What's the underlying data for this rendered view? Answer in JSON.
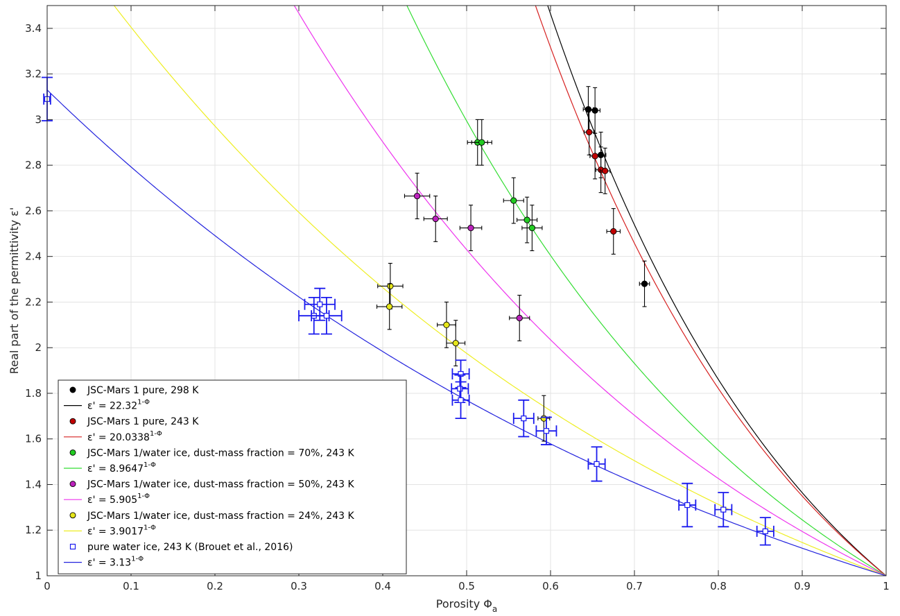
{
  "chart_data": {
    "type": "scatter",
    "xlabel": "Porosity Φ",
    "xlabel_sub": "a",
    "ylabel": "Real part of the permittivity ε'",
    "xlim": [
      0,
      1
    ],
    "ylim": [
      1,
      3.5
    ],
    "x_ticks": [
      {
        "value": 0,
        "label": "0"
      },
      {
        "value": 0.1,
        "label": "0.1"
      },
      {
        "value": 0.2,
        "label": "0.2"
      },
      {
        "value": 0.3,
        "label": "0.3"
      },
      {
        "value": 0.4,
        "label": "0.4"
      },
      {
        "value": 0.5,
        "label": "0.5"
      },
      {
        "value": 0.6,
        "label": "0.6"
      },
      {
        "value": 0.7,
        "label": "0.7"
      },
      {
        "value": 0.8,
        "label": "0.8"
      },
      {
        "value": 0.9,
        "label": "0.9"
      },
      {
        "value": 1,
        "label": "1"
      }
    ],
    "y_ticks": [
      {
        "value": 1,
        "label": "1"
      },
      {
        "value": 1.2,
        "label": "1.2"
      },
      {
        "value": 1.4,
        "label": "1.4"
      },
      {
        "value": 1.6,
        "label": "1.6"
      },
      {
        "value": 1.8,
        "label": "1.8"
      },
      {
        "value": 2,
        "label": "2"
      },
      {
        "value": 2.2,
        "label": "2.2"
      },
      {
        "value": 2.4,
        "label": "2.4"
      },
      {
        "value": 2.6,
        "label": "2.6"
      },
      {
        "value": 2.8,
        "label": "2.8"
      },
      {
        "value": 3,
        "label": "3"
      },
      {
        "value": 3.2,
        "label": "3.2"
      },
      {
        "value": 3.4,
        "label": "3.4"
      }
    ],
    "grid": true,
    "legend_position": "bottom-left",
    "legend": [
      {
        "label": "JSC-Mars 1 pure, 298 K",
        "kind": "marker",
        "color": "#000000",
        "marker": "circle"
      },
      {
        "label": "ε' = 22.32",
        "sup": "1-Φ",
        "kind": "line",
        "color": "#000000"
      },
      {
        "label": "JSC-Mars 1 pure, 243 K",
        "kind": "marker",
        "color": "#c00000",
        "marker": "circle"
      },
      {
        "label": "ε' = 20.0338",
        "sup": "1-Φ",
        "kind": "line",
        "color": "#d62020"
      },
      {
        "label": "JSC-Mars 1/water ice, dust-mass fraction = 70%, 243 K",
        "kind": "marker",
        "color": "#22cc22",
        "marker": "circle"
      },
      {
        "label": "ε' = 8.9647",
        "sup": "1-Φ",
        "kind": "line",
        "color": "#33dd33"
      },
      {
        "label": "JSC-Mars 1/water ice, dust-mass fraction = 50%, 243 K",
        "kind": "marker",
        "color": "#bb22bb",
        "marker": "circle"
      },
      {
        "label": "ε' = 5.905",
        "sup": "1-Φ",
        "kind": "line",
        "color": "#ee33ee"
      },
      {
        "label": "JSC-Mars 1/water ice, dust-mass fraction = 24%, 243 K",
        "kind": "marker",
        "color": "#e6e61a",
        "marker": "circle"
      },
      {
        "label": "ε' = 3.9017",
        "sup": "1-Φ",
        "kind": "line",
        "color": "#eeee22"
      },
      {
        "label": "pure water ice, 243 K (Brouet et al., 2016)",
        "kind": "marker",
        "color": "#1a1aee",
        "marker": "square"
      },
      {
        "label": "ε' = 3.13",
        "sup": "1-Φ",
        "kind": "line",
        "color": "#2222dd"
      }
    ],
    "curves": [
      {
        "name": "ε' = 22.32^(1-Φ)",
        "base": 22.32,
        "color": "#000000"
      },
      {
        "name": "ε' = 20.0338^(1-Φ)",
        "base": 20.0338,
        "color": "#d62020"
      },
      {
        "name": "ε' = 8.9647^(1-Φ)",
        "base": 8.9647,
        "color": "#33dd33"
      },
      {
        "name": "ε' = 5.905^(1-Φ)",
        "base": 5.905,
        "color": "#ee33ee"
      },
      {
        "name": "ε' = 3.9017^(1-Φ)",
        "base": 3.9017,
        "color": "#eeee22"
      },
      {
        "name": "ε' = 3.13^(1-Φ)",
        "base": 3.13,
        "color": "#2222dd"
      }
    ],
    "series": [
      {
        "name": "JSC-Mars 1 pure, 298 K",
        "marker": "circle",
        "color": "#000000",
        "points": [
          {
            "x": 0.645,
            "y": 3.045,
            "xerr": 0.006,
            "yerr": 0.1
          },
          {
            "x": 0.653,
            "y": 3.04,
            "xerr": 0.006,
            "yerr": 0.1
          },
          {
            "x": 0.66,
            "y": 2.845,
            "xerr": 0.006,
            "yerr": 0.1
          },
          {
            "x": 0.712,
            "y": 2.28,
            "xerr": 0.006,
            "yerr": 0.1
          }
        ]
      },
      {
        "name": "JSC-Mars 1 pure, 243 K",
        "marker": "circle",
        "color": "#c00000",
        "points": [
          {
            "x": 0.646,
            "y": 2.945,
            "xerr": 0.006,
            "yerr": 0.1
          },
          {
            "x": 0.653,
            "y": 2.84,
            "xerr": 0.006,
            "yerr": 0.1
          },
          {
            "x": 0.66,
            "y": 2.78,
            "xerr": 0.006,
            "yerr": 0.1
          },
          {
            "x": 0.665,
            "y": 2.775,
            "xerr": 0.006,
            "yerr": 0.1
          },
          {
            "x": 0.675,
            "y": 2.51,
            "xerr": 0.008,
            "yerr": 0.1
          }
        ]
      },
      {
        "name": "JSC-Mars 1/water ice, dust-mass fraction = 70%, 243 K",
        "marker": "circle",
        "color": "#22cc22",
        "points": [
          {
            "x": 0.513,
            "y": 2.9,
            "xerr": 0.012,
            "yerr": 0.1
          },
          {
            "x": 0.518,
            "y": 2.9,
            "xerr": 0.012,
            "yerr": 0.1
          },
          {
            "x": 0.556,
            "y": 2.645,
            "xerr": 0.012,
            "yerr": 0.1
          },
          {
            "x": 0.572,
            "y": 2.56,
            "xerr": 0.012,
            "yerr": 0.1
          },
          {
            "x": 0.578,
            "y": 2.525,
            "xerr": 0.012,
            "yerr": 0.1
          }
        ]
      },
      {
        "name": "JSC-Mars 1/water ice, dust-mass fraction = 50%, 243 K",
        "marker": "circle",
        "color": "#bb22bb",
        "points": [
          {
            "x": 0.441,
            "y": 2.665,
            "xerr": 0.015,
            "yerr": 0.1
          },
          {
            "x": 0.463,
            "y": 2.565,
            "xerr": 0.014,
            "yerr": 0.1
          },
          {
            "x": 0.505,
            "y": 2.525,
            "xerr": 0.013,
            "yerr": 0.1
          },
          {
            "x": 0.563,
            "y": 2.13,
            "xerr": 0.012,
            "yerr": 0.1
          }
        ]
      },
      {
        "name": "JSC-Mars 1/water ice, dust-mass fraction = 24%, 243 K",
        "marker": "circle",
        "color": "#e6e61a",
        "points": [
          {
            "x": 0.409,
            "y": 2.27,
            "xerr": 0.015,
            "yerr": 0.1
          },
          {
            "x": 0.408,
            "y": 2.18,
            "xerr": 0.015,
            "yerr": 0.1
          },
          {
            "x": 0.476,
            "y": 2.1,
            "xerr": 0.011,
            "yerr": 0.1
          },
          {
            "x": 0.487,
            "y": 2.02,
            "xerr": 0.011,
            "yerr": 0.1
          },
          {
            "x": 0.592,
            "y": 1.69,
            "xerr": 0.007,
            "yerr": 0.1
          }
        ]
      },
      {
        "name": "pure water ice, 243 K (Brouet et al., 2016)",
        "marker": "square",
        "color": "#1a1aee",
        "points": [
          {
            "x": 0.0,
            "y": 3.09,
            "xerr": 0.004,
            "yerr": 0.095
          },
          {
            "x": 0.318,
            "y": 2.14,
            "xerr": 0.018,
            "yerr": 0.08
          },
          {
            "x": 0.325,
            "y": 2.19,
            "xerr": 0.018,
            "yerr": 0.07
          },
          {
            "x": 0.333,
            "y": 2.14,
            "xerr": 0.018,
            "yerr": 0.08
          },
          {
            "x": 0.493,
            "y": 1.885,
            "xerr": 0.01,
            "yerr": 0.06
          },
          {
            "x": 0.492,
            "y": 1.82,
            "xerr": 0.01,
            "yerr": 0.06
          },
          {
            "x": 0.493,
            "y": 1.77,
            "xerr": 0.01,
            "yerr": 0.08
          },
          {
            "x": 0.568,
            "y": 1.69,
            "xerr": 0.012,
            "yerr": 0.08
          },
          {
            "x": 0.595,
            "y": 1.635,
            "xerr": 0.012,
            "yerr": 0.06
          },
          {
            "x": 0.655,
            "y": 1.49,
            "xerr": 0.01,
            "yerr": 0.075
          },
          {
            "x": 0.763,
            "y": 1.31,
            "xerr": 0.01,
            "yerr": 0.095
          },
          {
            "x": 0.806,
            "y": 1.29,
            "xerr": 0.01,
            "yerr": 0.075
          },
          {
            "x": 0.856,
            "y": 1.195,
            "xerr": 0.01,
            "yerr": 0.06
          }
        ]
      }
    ]
  }
}
